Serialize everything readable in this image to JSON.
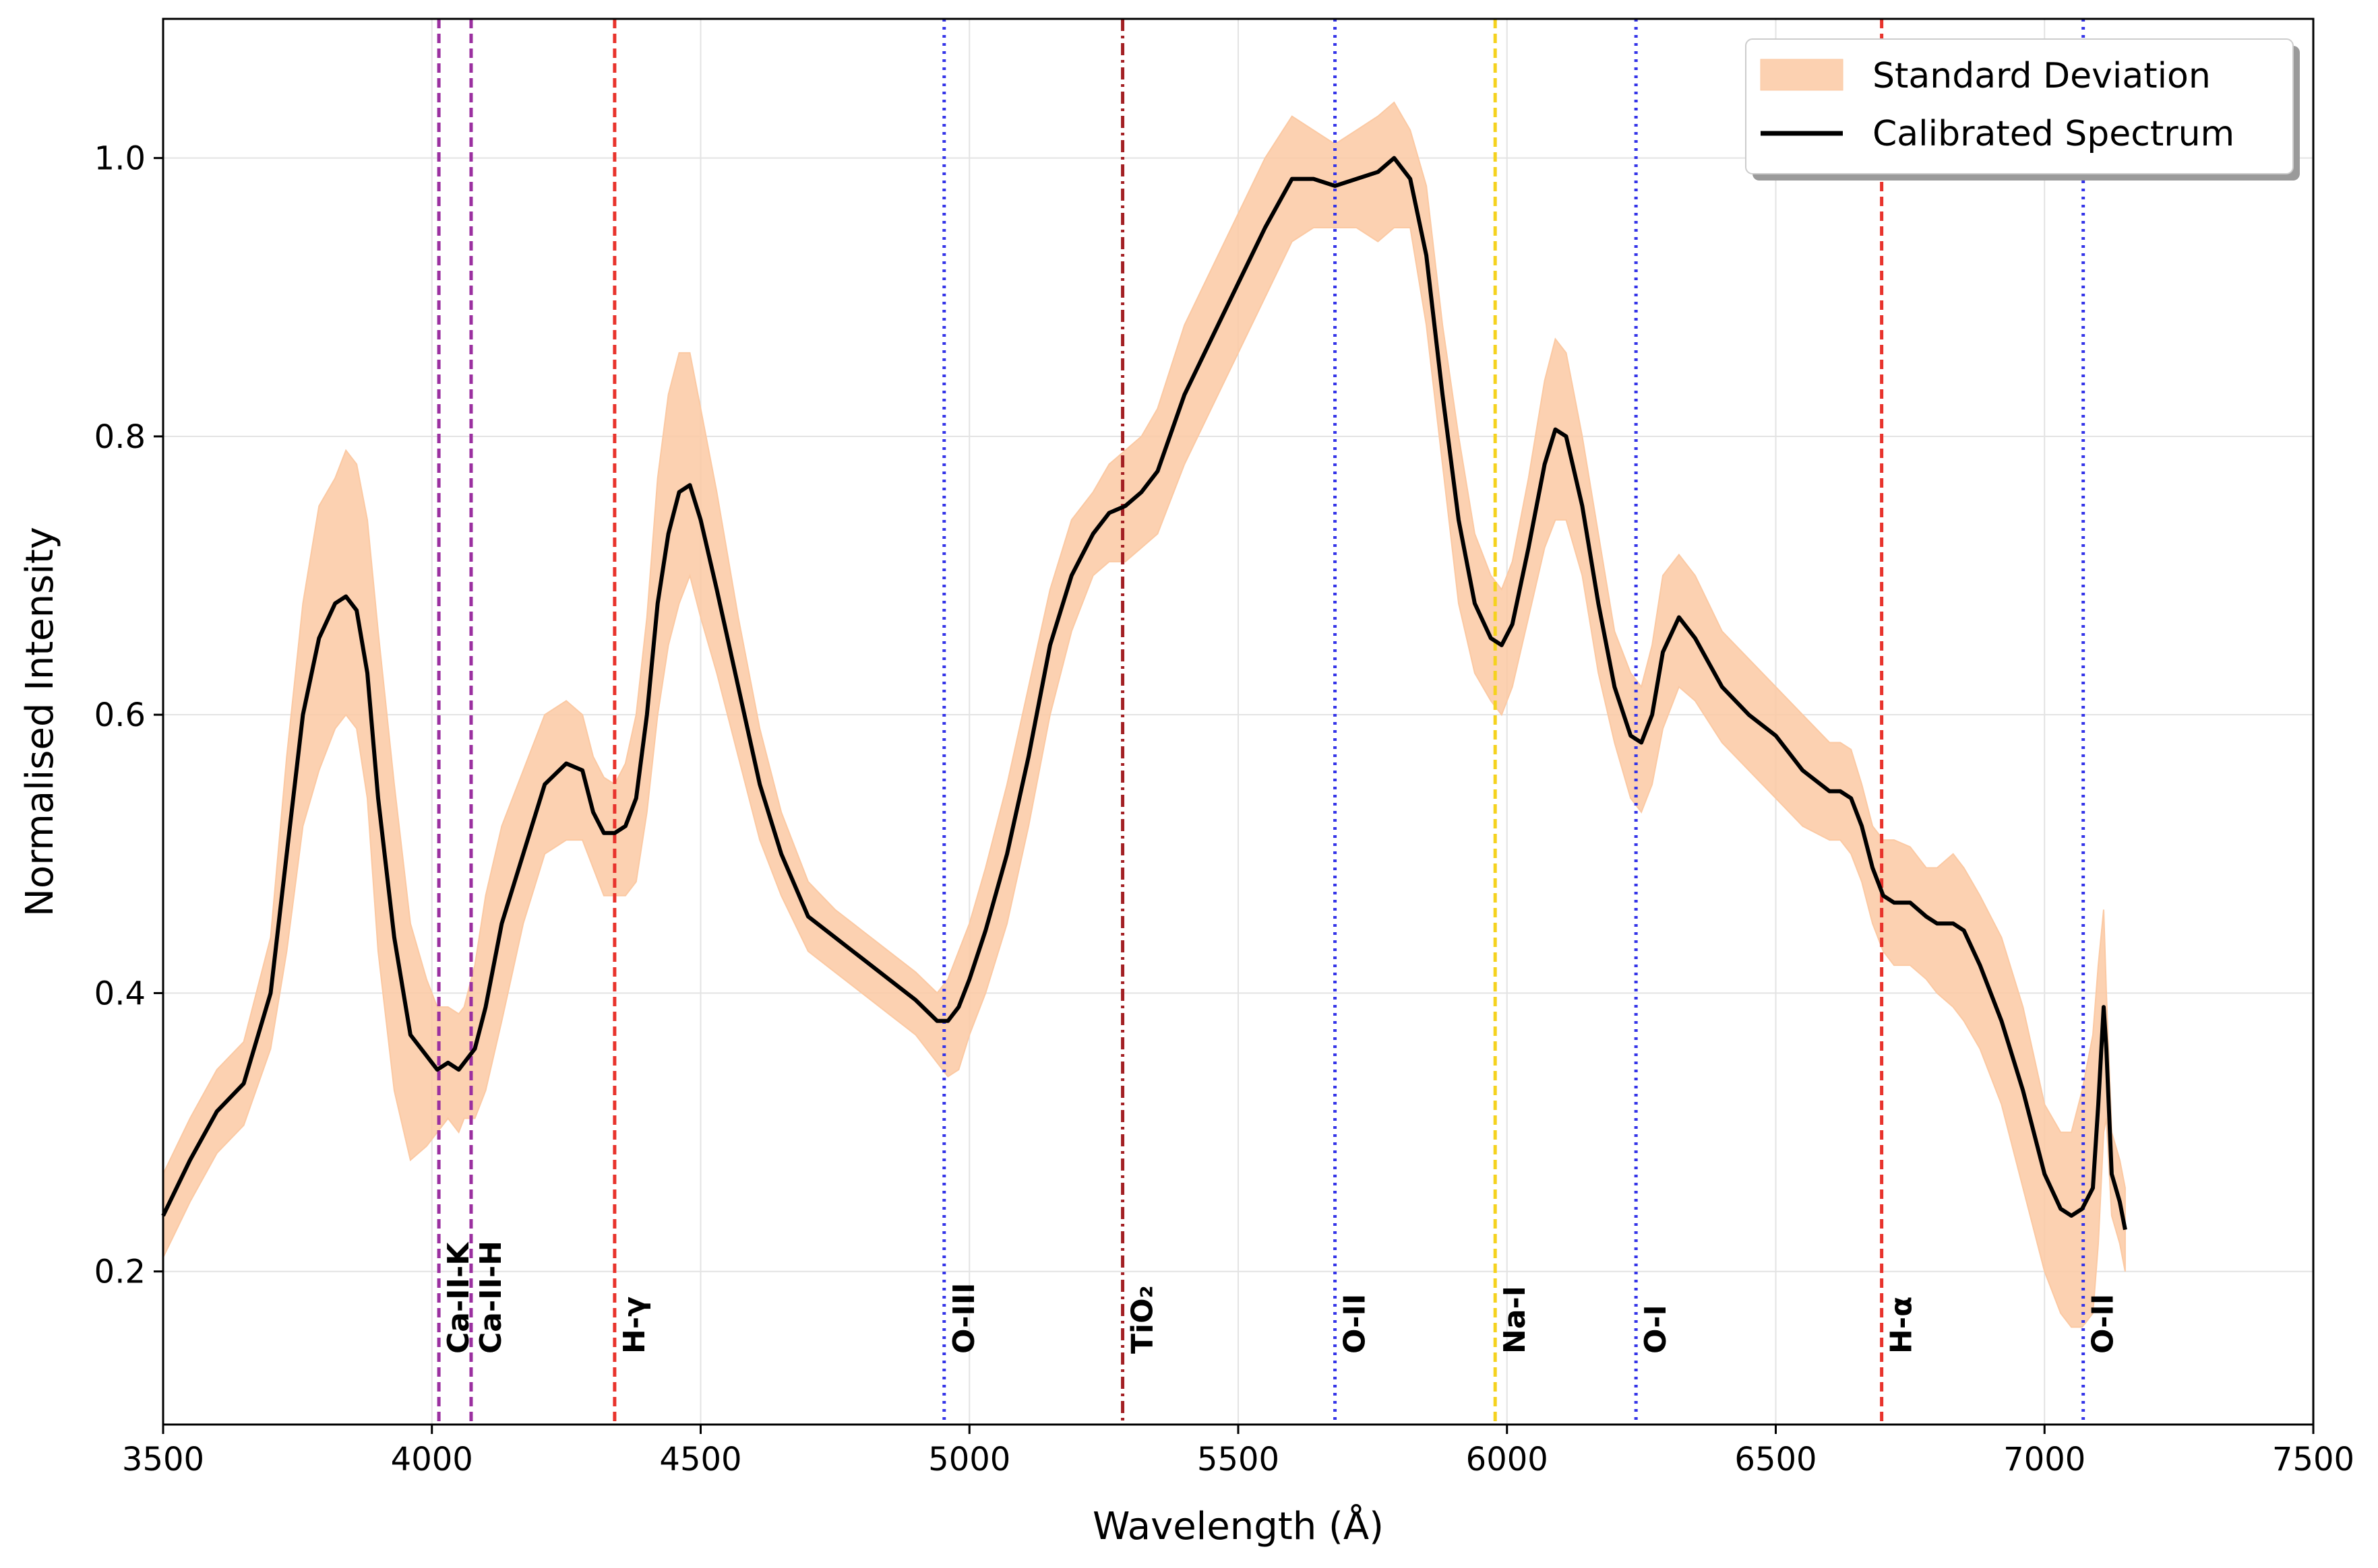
{
  "chart_data": {
    "type": "line",
    "title": "",
    "xlabel": "Wavelength (Å)",
    "ylabel": "Normalised Intensity",
    "xlim": [
      3500,
      7500
    ],
    "ylim": [
      0.09,
      1.1
    ],
    "x_ticks": [
      3500,
      4000,
      4500,
      5000,
      5500,
      6000,
      6500,
      7000,
      7500
    ],
    "y_ticks": [
      0.2,
      0.4,
      0.6,
      0.8,
      1.0
    ],
    "x_tick_labels": [
      "3500",
      "4000",
      "4500",
      "5000",
      "5500",
      "6000",
      "6500",
      "7000",
      "7500"
    ],
    "y_tick_labels": [
      "0.2",
      "0.4",
      "0.6",
      "0.8",
      "1.0"
    ],
    "grid": true,
    "legend": {
      "placement": "top-right",
      "entries": [
        {
          "label": "Standard Deviation",
          "style": "filled-band",
          "color": "#fbc9a3"
        },
        {
          "label": "Calibrated Spectrum",
          "style": "line",
          "color": "#000000"
        }
      ]
    },
    "series": [
      {
        "name": "Calibrated Spectrum",
        "color": "#000000",
        "x": [
          3500,
          3550,
          3600,
          3650,
          3700,
          3730,
          3760,
          3790,
          3820,
          3840,
          3860,
          3880,
          3900,
          3930,
          3960,
          3990,
          4010,
          4030,
          4050,
          4060,
          4080,
          4100,
          4130,
          4170,
          4210,
          4250,
          4280,
          4300,
          4320,
          4340,
          4360,
          4380,
          4400,
          4420,
          4440,
          4460,
          4480,
          4500,
          4530,
          4570,
          4610,
          4650,
          4700,
          4750,
          4800,
          4850,
          4900,
          4940,
          4960,
          4980,
          5000,
          5030,
          5070,
          5110,
          5150,
          5190,
          5230,
          5260,
          5290,
          5320,
          5350,
          5400,
          5450,
          5500,
          5550,
          5600,
          5640,
          5680,
          5720,
          5760,
          5790,
          5820,
          5850,
          5880,
          5910,
          5940,
          5970,
          5990,
          6010,
          6040,
          6070,
          6090,
          6110,
          6140,
          6170,
          6200,
          6230,
          6250,
          6270,
          6290,
          6320,
          6350,
          6400,
          6450,
          6500,
          6550,
          6600,
          6620,
          6640,
          6660,
          6680,
          6700,
          6720,
          6750,
          6780,
          6800,
          6830,
          6850,
          6880,
          6920,
          6960,
          7000,
          7030,
          7050,
          7070,
          7090,
          7100,
          7110,
          7115,
          7125,
          7140,
          7150
        ],
        "values": [
          0.24,
          0.28,
          0.315,
          0.335,
          0.4,
          0.5,
          0.6,
          0.655,
          0.68,
          0.685,
          0.675,
          0.63,
          0.54,
          0.44,
          0.37,
          0.355,
          0.345,
          0.35,
          0.345,
          0.35,
          0.36,
          0.39,
          0.45,
          0.5,
          0.55,
          0.565,
          0.56,
          0.53,
          0.515,
          0.515,
          0.52,
          0.54,
          0.6,
          0.68,
          0.73,
          0.76,
          0.765,
          0.74,
          0.69,
          0.62,
          0.55,
          0.5,
          0.455,
          0.44,
          0.425,
          0.41,
          0.395,
          0.38,
          0.38,
          0.39,
          0.41,
          0.445,
          0.5,
          0.57,
          0.65,
          0.7,
          0.73,
          0.745,
          0.75,
          0.76,
          0.775,
          0.83,
          0.87,
          0.91,
          0.95,
          0.985,
          0.985,
          0.98,
          0.985,
          0.99,
          1.0,
          0.985,
          0.93,
          0.83,
          0.74,
          0.68,
          0.655,
          0.65,
          0.665,
          0.72,
          0.78,
          0.805,
          0.8,
          0.75,
          0.68,
          0.62,
          0.585,
          0.58,
          0.6,
          0.645,
          0.67,
          0.655,
          0.62,
          0.6,
          0.585,
          0.56,
          0.545,
          0.545,
          0.54,
          0.52,
          0.49,
          0.47,
          0.465,
          0.465,
          0.455,
          0.45,
          0.45,
          0.445,
          0.42,
          0.38,
          0.33,
          0.27,
          0.245,
          0.24,
          0.245,
          0.26,
          0.32,
          0.39,
          0.36,
          0.27,
          0.25,
          0.23
        ]
      },
      {
        "name": "Standard Deviation",
        "color": "#fbc9a3",
        "x": [
          3500,
          3550,
          3600,
          3650,
          3700,
          3730,
          3760,
          3790,
          3820,
          3840,
          3860,
          3880,
          3900,
          3930,
          3960,
          3990,
          4010,
          4030,
          4050,
          4060,
          4080,
          4100,
          4130,
          4170,
          4210,
          4250,
          4280,
          4300,
          4320,
          4340,
          4360,
          4380,
          4400,
          4420,
          4440,
          4460,
          4480,
          4500,
          4530,
          4570,
          4610,
          4650,
          4700,
          4750,
          4800,
          4850,
          4900,
          4940,
          4960,
          4980,
          5000,
          5030,
          5070,
          5110,
          5150,
          5190,
          5230,
          5260,
          5290,
          5320,
          5350,
          5400,
          5450,
          5500,
          5550,
          5600,
          5640,
          5680,
          5720,
          5760,
          5790,
          5820,
          5850,
          5880,
          5910,
          5940,
          5970,
          5990,
          6010,
          6040,
          6070,
          6090,
          6110,
          6140,
          6170,
          6200,
          6230,
          6250,
          6270,
          6290,
          6320,
          6350,
          6400,
          6450,
          6500,
          6550,
          6600,
          6620,
          6640,
          6660,
          6680,
          6700,
          6720,
          6750,
          6780,
          6800,
          6830,
          6850,
          6880,
          6920,
          6960,
          7000,
          7030,
          7050,
          7070,
          7090,
          7100,
          7110,
          7115,
          7125,
          7140,
          7150
        ],
        "upper": [
          0.27,
          0.31,
          0.345,
          0.365,
          0.44,
          0.57,
          0.68,
          0.75,
          0.77,
          0.79,
          0.78,
          0.74,
          0.66,
          0.55,
          0.45,
          0.41,
          0.39,
          0.39,
          0.385,
          0.39,
          0.42,
          0.47,
          0.52,
          0.56,
          0.6,
          0.61,
          0.6,
          0.57,
          0.555,
          0.55,
          0.565,
          0.6,
          0.67,
          0.77,
          0.83,
          0.86,
          0.86,
          0.82,
          0.76,
          0.67,
          0.59,
          0.53,
          0.48,
          0.46,
          0.445,
          0.43,
          0.415,
          0.4,
          0.41,
          0.43,
          0.45,
          0.49,
          0.55,
          0.62,
          0.69,
          0.74,
          0.76,
          0.78,
          0.79,
          0.8,
          0.82,
          0.88,
          0.92,
          0.96,
          1.0,
          1.03,
          1.02,
          1.01,
          1.02,
          1.03,
          1.04,
          1.02,
          0.98,
          0.88,
          0.8,
          0.73,
          0.7,
          0.69,
          0.71,
          0.77,
          0.84,
          0.87,
          0.86,
          0.8,
          0.73,
          0.66,
          0.63,
          0.62,
          0.65,
          0.7,
          0.715,
          0.7,
          0.66,
          0.64,
          0.62,
          0.6,
          0.58,
          0.58,
          0.575,
          0.55,
          0.52,
          0.51,
          0.51,
          0.505,
          0.49,
          0.49,
          0.5,
          0.49,
          0.47,
          0.44,
          0.39,
          0.32,
          0.3,
          0.3,
          0.33,
          0.37,
          0.42,
          0.46,
          0.4,
          0.3,
          0.28,
          0.26
        ],
        "lower": [
          0.21,
          0.25,
          0.285,
          0.305,
          0.36,
          0.43,
          0.52,
          0.56,
          0.59,
          0.6,
          0.59,
          0.54,
          0.43,
          0.33,
          0.28,
          0.29,
          0.3,
          0.31,
          0.3,
          0.31,
          0.31,
          0.33,
          0.38,
          0.45,
          0.5,
          0.51,
          0.51,
          0.49,
          0.47,
          0.47,
          0.47,
          0.48,
          0.53,
          0.6,
          0.65,
          0.68,
          0.7,
          0.67,
          0.63,
          0.57,
          0.51,
          0.47,
          0.43,
          0.415,
          0.4,
          0.385,
          0.37,
          0.35,
          0.34,
          0.345,
          0.37,
          0.4,
          0.45,
          0.52,
          0.6,
          0.66,
          0.7,
          0.71,
          0.71,
          0.72,
          0.73,
          0.78,
          0.82,
          0.86,
          0.9,
          0.94,
          0.95,
          0.95,
          0.95,
          0.94,
          0.95,
          0.95,
          0.88,
          0.78,
          0.68,
          0.63,
          0.61,
          0.6,
          0.62,
          0.67,
          0.72,
          0.74,
          0.74,
          0.7,
          0.63,
          0.58,
          0.54,
          0.53,
          0.55,
          0.59,
          0.62,
          0.61,
          0.58,
          0.56,
          0.54,
          0.52,
          0.51,
          0.51,
          0.5,
          0.48,
          0.45,
          0.43,
          0.42,
          0.42,
          0.41,
          0.4,
          0.39,
          0.38,
          0.36,
          0.32,
          0.26,
          0.2,
          0.17,
          0.16,
          0.16,
          0.17,
          0.22,
          0.3,
          0.31,
          0.24,
          0.22,
          0.2
        ]
      }
    ],
    "reference_lines": [
      {
        "label": "Ca-II-K",
        "x": 4013,
        "color": "#9b30a0",
        "style": "dashed"
      },
      {
        "label": "Ca-II-H",
        "x": 4073,
        "color": "#9b30a0",
        "style": "dashed"
      },
      {
        "label": "H-γ",
        "x": 4340,
        "color": "#e8332c",
        "style": "dashed"
      },
      {
        "label": "O-III",
        "x": 4953,
        "color": "#3434e8",
        "style": "dotted"
      },
      {
        "label": "TiO₂",
        "x": 5285,
        "color": "#a32024",
        "style": "dashdot"
      },
      {
        "label": "O-II",
        "x": 5680,
        "color": "#3434e8",
        "style": "dotted"
      },
      {
        "label": "Na-I",
        "x": 5978,
        "color": "#f5d21f",
        "style": "dashed"
      },
      {
        "label": "O-I",
        "x": 6240,
        "color": "#3434e8",
        "style": "dotted"
      },
      {
        "label": "H-α",
        "x": 6697,
        "color": "#e8332c",
        "style": "dashed"
      },
      {
        "label": "O-II",
        "x": 7072,
        "color": "#3434e8",
        "style": "dotted"
      }
    ]
  }
}
